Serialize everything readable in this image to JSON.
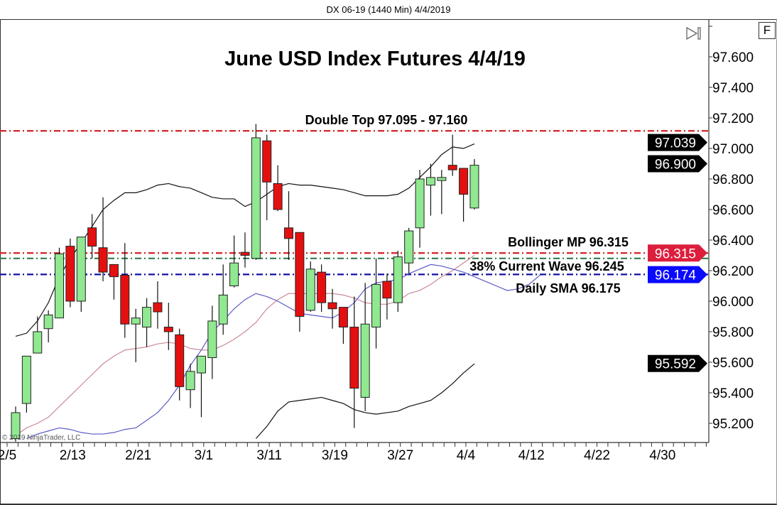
{
  "window": {
    "title": "DX 06-19 (1440 Min)  4/4/2019"
  },
  "controls": {
    "f_button": "F",
    "scroll_to_end_icon": "play-to-end-icon"
  },
  "copyright": "© 2019 NinjaTrader, LLC",
  "chart_data": {
    "type": "candlestick",
    "title": "June USD Index Futures 4/4/19",
    "y_axis": {
      "position": "right",
      "range": [
        95.1,
        97.82
      ],
      "ticks": [
        "95.200",
        "95.400",
        "95.600",
        "95.800",
        "96.000",
        "96.200",
        "96.400",
        "96.600",
        "96.800",
        "97.000",
        "97.200",
        "97.400",
        "97.600"
      ]
    },
    "x_axis": {
      "tick_labels": [
        "2/5",
        "2/13",
        "2/21",
        "3/1",
        "3/11",
        "3/19",
        "3/27",
        "4/4",
        "4/12",
        "4/22",
        "4/30"
      ],
      "last_date": "5/6"
    },
    "grid": false,
    "colors": {
      "up": "#90e890",
      "down": "#e41010",
      "bollinger": "#111111",
      "middle_band": "#c98a94",
      "moving_average": "#5a5ac8"
    },
    "dates": [
      "2/5",
      "2/6",
      "2/7",
      "2/8",
      "2/11",
      "2/12",
      "2/13",
      "2/14",
      "2/15",
      "2/18",
      "2/19",
      "2/20",
      "2/21",
      "2/22",
      "2/25",
      "2/26",
      "2/27",
      "2/28",
      "3/1",
      "3/4",
      "3/5",
      "3/6",
      "3/7",
      "3/8",
      "3/11",
      "3/12",
      "3/13",
      "3/14",
      "3/15",
      "3/18",
      "3/19",
      "3/20",
      "3/21",
      "3/22",
      "3/25",
      "3/26",
      "3/27",
      "3/28",
      "3/29",
      "4/1",
      "4/2",
      "4/3",
      "4/4"
    ],
    "ohlc": [
      [
        95.1,
        95.31,
        95.08,
        95.27
      ],
      [
        95.33,
        95.64,
        95.27,
        95.64
      ],
      [
        95.66,
        95.9,
        95.66,
        95.8
      ],
      [
        95.82,
        95.94,
        95.73,
        95.91
      ],
      [
        95.89,
        96.35,
        95.89,
        96.31
      ],
      [
        96.36,
        96.41,
        95.96,
        96.0
      ],
      [
        96.0,
        96.42,
        95.93,
        96.42
      ],
      [
        96.48,
        96.57,
        96.28,
        96.36
      ],
      [
        96.35,
        96.68,
        96.13,
        96.19
      ],
      [
        96.24,
        96.24,
        96.01,
        96.16
      ],
      [
        96.17,
        96.38,
        95.76,
        95.85
      ],
      [
        95.85,
        95.95,
        95.6,
        95.89
      ],
      [
        95.83,
        96.02,
        95.7,
        95.96
      ],
      [
        95.99,
        96.13,
        95.82,
        95.93
      ],
      [
        95.83,
        95.99,
        95.68,
        95.8
      ],
      [
        95.78,
        95.82,
        95.35,
        95.44
      ],
      [
        95.42,
        95.59,
        95.3,
        95.54
      ],
      [
        95.53,
        95.64,
        95.24,
        95.64
      ],
      [
        95.63,
        95.97,
        95.49,
        95.87
      ],
      [
        95.85,
        96.24,
        95.78,
        96.04
      ],
      [
        96.1,
        96.43,
        96.09,
        96.25
      ],
      [
        96.32,
        96.45,
        96.22,
        96.3
      ],
      [
        96.28,
        97.16,
        96.27,
        97.07
      ],
      [
        97.05,
        97.09,
        96.53,
        96.78
      ],
      [
        96.77,
        96.89,
        96.59,
        96.6
      ],
      [
        96.48,
        96.72,
        96.27,
        96.41
      ],
      [
        96.45,
        96.45,
        95.8,
        95.9
      ],
      [
        95.94,
        96.26,
        95.93,
        96.21
      ],
      [
        96.19,
        96.24,
        95.93,
        95.99
      ],
      [
        95.99,
        96.08,
        95.82,
        95.95
      ],
      [
        95.96,
        95.96,
        95.72,
        95.83
      ],
      [
        95.83,
        96.03,
        95.17,
        95.43
      ],
      [
        95.37,
        96.12,
        95.28,
        95.85
      ],
      [
        95.83,
        96.28,
        95.69,
        96.11
      ],
      [
        96.13,
        96.18,
        95.88,
        96.02
      ],
      [
        95.99,
        96.33,
        95.93,
        96.29
      ],
      [
        96.25,
        96.48,
        96.18,
        96.46
      ],
      [
        96.48,
        96.86,
        96.35,
        96.8
      ],
      [
        96.76,
        96.9,
        96.56,
        96.81
      ],
      [
        96.79,
        96.86,
        96.57,
        96.81
      ],
      [
        96.89,
        97.09,
        96.82,
        96.86
      ],
      [
        96.87,
        96.87,
        96.52,
        96.7
      ],
      [
        96.61,
        96.93,
        96.6,
        96.89
      ]
    ],
    "indicators": {
      "bollinger_upper": [
        95.77,
        95.79,
        95.87,
        95.99,
        96.16,
        96.28,
        96.38,
        96.49,
        96.6,
        96.66,
        96.71,
        96.71,
        96.73,
        96.76,
        96.77,
        96.75,
        96.74,
        96.71,
        96.68,
        96.67,
        96.67,
        96.62,
        96.65,
        96.7,
        96.75,
        96.77,
        96.76,
        96.76,
        96.75,
        96.74,
        96.73,
        96.71,
        96.69,
        96.69,
        96.69,
        96.7,
        96.74,
        96.81,
        96.88,
        96.96,
        97.01,
        97.0,
        97.03
      ],
      "bollinger_middle": [
        95.12,
        95.17,
        95.2,
        95.24,
        95.31,
        95.38,
        95.45,
        95.52,
        95.59,
        95.64,
        95.68,
        95.69,
        95.7,
        95.72,
        95.73,
        95.72,
        95.69,
        95.68,
        95.68,
        95.71,
        95.75,
        95.8,
        95.86,
        95.95,
        96.01,
        96.05,
        96.05,
        96.05,
        96.05,
        96.05,
        96.04,
        96.02,
        95.99,
        95.98,
        95.98,
        96.0,
        96.05,
        96.07,
        96.11,
        96.16,
        96.2,
        96.25,
        96.3
      ],
      "bollinger_lower": [
        null,
        null,
        null,
        null,
        null,
        null,
        null,
        null,
        null,
        null,
        null,
        null,
        null,
        null,
        null,
        null,
        null,
        null,
        null,
        null,
        null,
        null,
        95.1,
        95.18,
        95.28,
        95.34,
        95.35,
        95.36,
        95.37,
        95.35,
        95.33,
        95.29,
        95.27,
        95.26,
        95.27,
        95.28,
        95.31,
        95.33,
        95.35,
        95.4,
        95.46,
        95.53,
        95.59
      ],
      "displaced_sma": [
        null,
        95.1,
        95.13,
        95.15,
        95.17,
        95.16,
        95.14,
        95.13,
        95.13,
        95.14,
        95.16,
        95.17,
        95.22,
        95.27,
        95.35,
        95.45,
        95.58,
        95.68,
        95.8,
        95.87,
        95.95,
        96.01,
        96.05,
        96.03,
        96.0,
        95.96,
        95.92,
        95.91,
        95.9,
        95.89,
        95.93,
        95.99,
        96.08,
        96.12,
        96.13,
        96.14,
        96.18,
        96.21,
        96.24,
        96.23,
        96.21,
        96.19,
        96.16,
        96.13,
        96.1,
        96.07,
        96.08,
        96.11,
        96.17
      ]
    },
    "horizontal_lines": [
      {
        "level": 97.115,
        "color": "#d42020",
        "label": "Double Top 97.095 - 97.160"
      },
      {
        "level": 96.315,
        "color": "#d42020",
        "label": "Bollinger MP 96.315"
      },
      {
        "level": 96.28,
        "color": "#2e7d4a",
        "label": "38% Current Wave 96.245"
      },
      {
        "level": 96.175,
        "color": "#1010a0",
        "label": "Daily SMA 96.175"
      }
    ],
    "price_tags": [
      {
        "value": "97.039",
        "color": "#000000"
      },
      {
        "value": "96.900",
        "color": "#000000"
      },
      {
        "value": "96.315",
        "color": "#dc1e3c"
      },
      {
        "value": "96.174",
        "color": "#0a0aff"
      },
      {
        "value": "95.592",
        "color": "#000000"
      }
    ]
  }
}
